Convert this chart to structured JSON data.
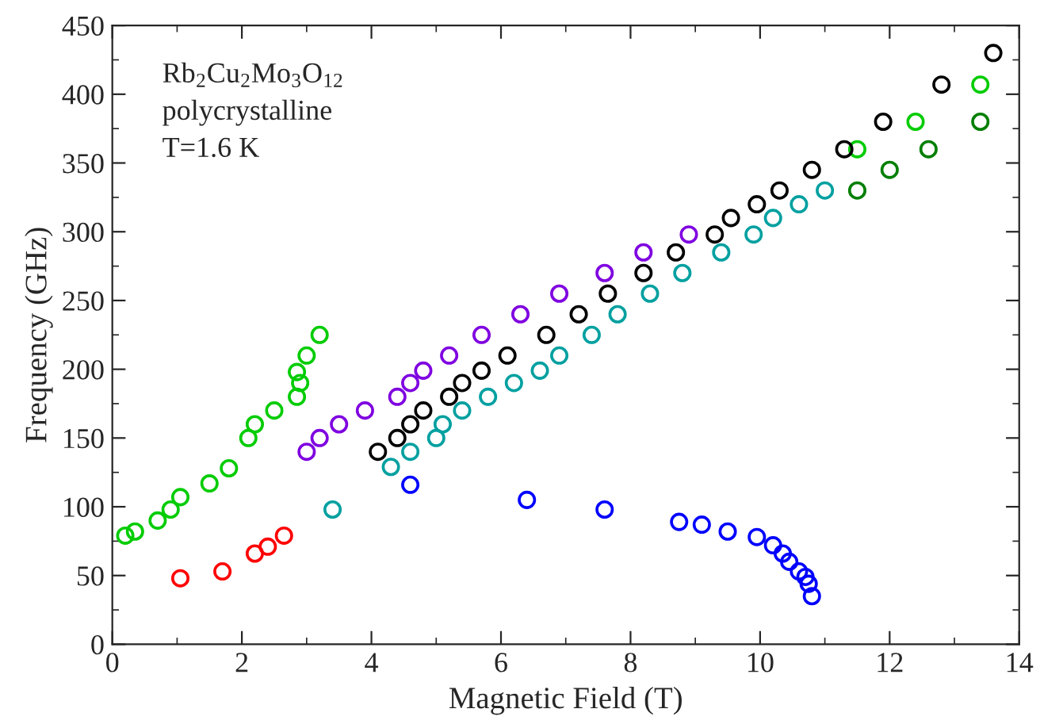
{
  "chart_data": {
    "type": "scatter",
    "xlabel": "Magnetic Field (T)",
    "ylabel": "Frequency (GHz)",
    "xlim": [
      0,
      14
    ],
    "xticks": [
      0,
      2,
      4,
      6,
      8,
      10,
      12,
      14
    ],
    "ylim": [
      0,
      450
    ],
    "yticks": [
      0,
      50,
      100,
      150,
      200,
      250,
      300,
      350,
      400,
      450
    ],
    "grid": false,
    "legend": false,
    "marker": "circle",
    "annotations": [
      "Rb$_{2}$Cu$_{2}$Mo$_{3}$O$_{12}$",
      "polycrystalline",
      "T=1.6 K"
    ],
    "series": [
      {
        "color": "#00cc00",
        "x": [
          0.2,
          0.35,
          0.7,
          0.9,
          1.05,
          1.5,
          1.8,
          2.1,
          2.2,
          2.5,
          2.85,
          2.9,
          2.85,
          3.0,
          3.2,
          11.5,
          12.4,
          13.4
        ],
        "values": [
          79,
          82,
          90,
          98,
          107,
          117,
          128,
          150,
          160,
          170,
          180,
          190,
          198,
          210,
          225,
          360,
          380,
          407
        ]
      },
      {
        "color": "#ff0000",
        "x": [
          1.05,
          1.7,
          2.2,
          2.4,
          2.65
        ],
        "values": [
          48,
          53,
          66,
          71,
          79
        ]
      },
      {
        "color": "#7f00e0",
        "x": [
          3.0,
          3.2,
          3.5,
          3.9,
          4.4,
          4.6,
          4.8,
          5.2,
          5.7,
          6.3,
          6.9,
          7.6,
          8.2,
          8.9
        ],
        "values": [
          140,
          150,
          160,
          170,
          180,
          190,
          199,
          210,
          225,
          240,
          255,
          270,
          285,
          298
        ]
      },
      {
        "color": "#000000",
        "x": [
          4.1,
          4.4,
          4.6,
          4.8,
          5.2,
          5.4,
          5.7,
          6.1,
          6.7,
          7.2,
          7.65,
          8.2,
          8.7,
          9.3,
          9.55,
          9.95,
          10.3,
          10.8,
          11.3,
          11.9,
          12.8,
          13.6
        ],
        "values": [
          140,
          150,
          160,
          170,
          180,
          190,
          199,
          210,
          225,
          240,
          255,
          270,
          285,
          298,
          310,
          320,
          330,
          345,
          360,
          380,
          407,
          430
        ]
      },
      {
        "color": "#00a0a0",
        "x": [
          3.4,
          4.3,
          4.6,
          5.0,
          5.1,
          5.4,
          5.8,
          6.2,
          6.6,
          6.9,
          7.4,
          7.8,
          8.3,
          8.8,
          9.4,
          9.9,
          10.2,
          10.6,
          11.0
        ],
        "values": [
          98,
          129,
          140,
          150,
          160,
          170,
          180,
          190,
          199,
          210,
          225,
          240,
          255,
          270,
          285,
          298,
          310,
          320,
          330
        ]
      },
      {
        "color": "#0000ff",
        "x": [
          4.6,
          6.4,
          7.6,
          8.75,
          9.1,
          9.5,
          9.95,
          10.2,
          10.35,
          10.45,
          10.6,
          10.7,
          10.75,
          10.8
        ],
        "values": [
          116,
          105,
          98,
          89,
          87,
          82,
          78,
          72,
          66,
          60,
          53,
          49,
          44,
          35
        ]
      },
      {
        "color": "#007f00",
        "x": [
          11.5,
          12.0,
          12.6,
          13.4
        ],
        "values": [
          330,
          345,
          360,
          380
        ]
      }
    ]
  }
}
